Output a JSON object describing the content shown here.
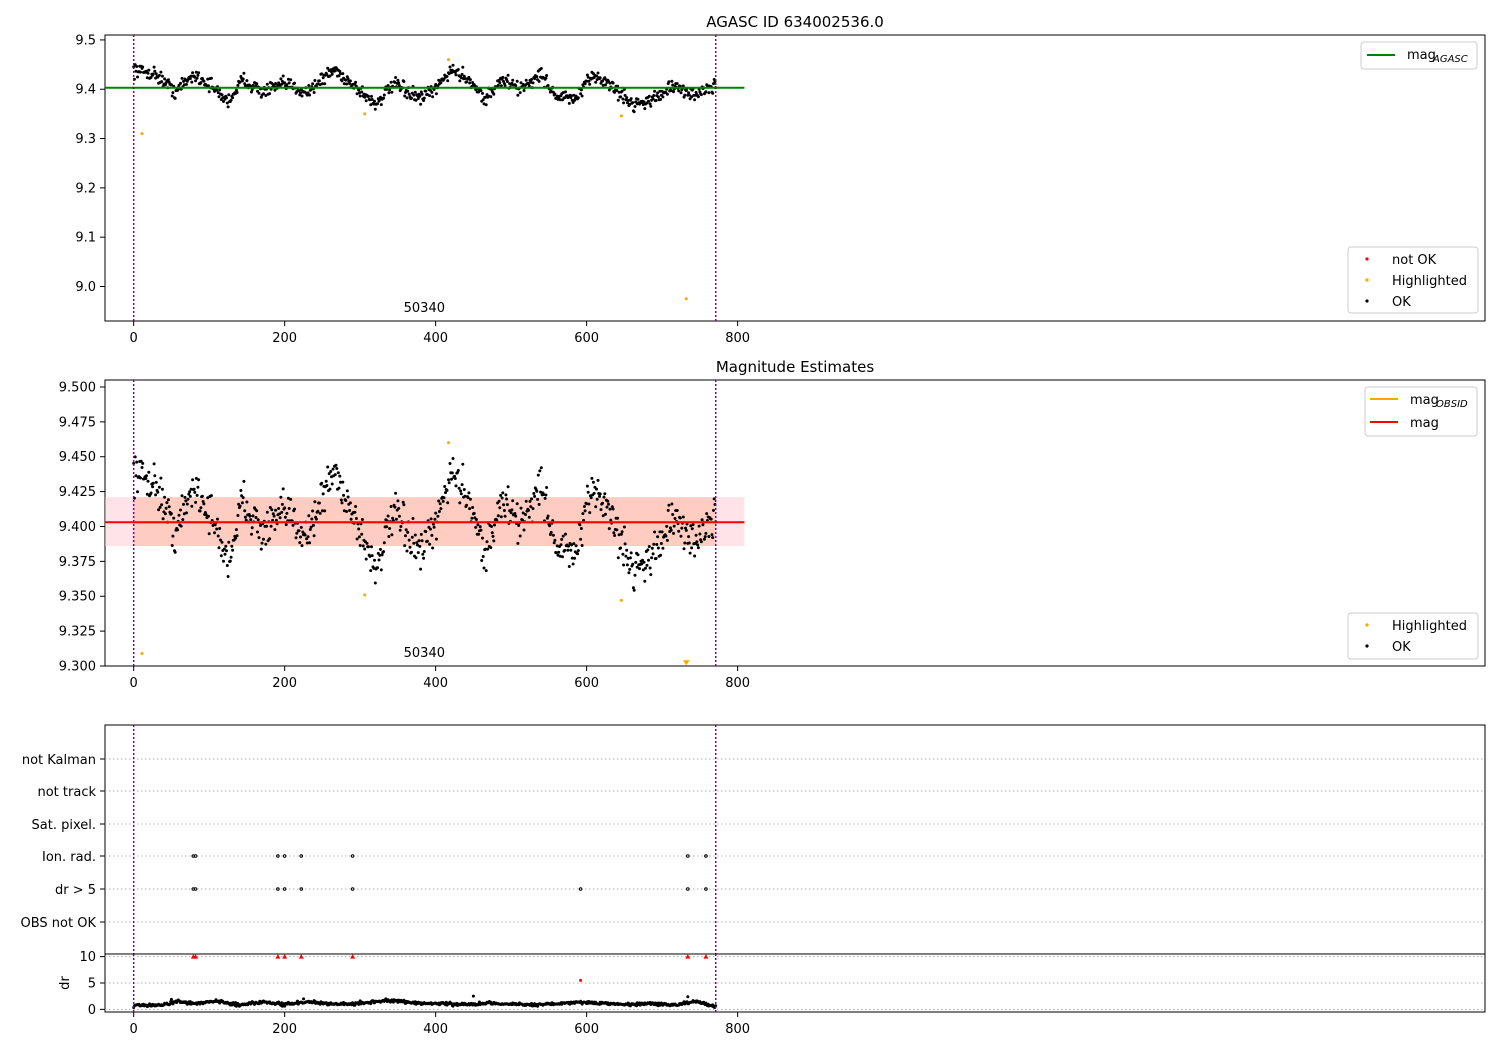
{
  "figure": {
    "panel1_title": "AGASC ID 634002536.0",
    "panel2_title": "Magnitude Estimates"
  },
  "colors": {
    "ok": "#000000",
    "highlighted": "#ffa500",
    "not_ok": "#ff0000",
    "agasc_line": "#008000",
    "mag_line": "#ff0000",
    "obsid_line": "#ffa500",
    "band_outer": "#ffc0cb",
    "band_inner": "#ffa07a",
    "obs_boundary": "#800080",
    "grid": "#b0b0b0"
  },
  "chart_data": [
    {
      "type": "scatter",
      "title": "AGASC ID 634002536.0",
      "xlim": [
        -38,
        1790
      ],
      "ylim": [
        8.93,
        9.51
      ],
      "xticks": [
        0,
        200,
        400,
        600,
        800
      ],
      "yticks": [
        9.0,
        9.1,
        9.2,
        9.3,
        9.4,
        9.5
      ],
      "ytick_labels": [
        "9.0",
        "9.1",
        "9.2",
        "9.3",
        "9.4",
        "9.5"
      ],
      "mag_agasc": 9.403,
      "obs_boundaries": [
        0,
        771
      ],
      "obs_label": {
        "text": "50340",
        "x": 385
      },
      "legend_lines": [
        {
          "name": "mag",
          "sub": "AGASC",
          "color": "#008000"
        }
      ],
      "legend_points": [
        {
          "name": "not OK",
          "color": "#ff0000"
        },
        {
          "name": "Highlighted",
          "color": "#ffa500"
        },
        {
          "name": "OK",
          "color": "#000000"
        }
      ],
      "highlighted": [
        [
          11,
          9.31
        ],
        [
          306,
          9.35
        ],
        [
          417,
          9.46
        ],
        [
          646,
          9.346
        ],
        [
          732,
          8.975
        ]
      ],
      "ok_trend": [
        [
          0,
          9.44
        ],
        [
          30,
          9.43
        ],
        [
          55,
          9.395
        ],
        [
          80,
          9.43
        ],
        [
          100,
          9.41
        ],
        [
          125,
          9.375
        ],
        [
          145,
          9.42
        ],
        [
          170,
          9.395
        ],
        [
          200,
          9.41
        ],
        [
          230,
          9.395
        ],
        [
          265,
          9.44
        ],
        [
          290,
          9.41
        ],
        [
          320,
          9.37
        ],
        [
          345,
          9.41
        ],
        [
          380,
          9.38
        ],
        [
          400,
          9.4
        ],
        [
          420,
          9.44
        ],
        [
          445,
          9.42
        ],
        [
          465,
          9.38
        ],
        [
          490,
          9.42
        ],
        [
          510,
          9.4
        ],
        [
          540,
          9.43
        ],
        [
          560,
          9.385
        ],
        [
          585,
          9.38
        ],
        [
          610,
          9.43
        ],
        [
          630,
          9.41
        ],
        [
          660,
          9.37
        ],
        [
          690,
          9.38
        ],
        [
          710,
          9.405
        ],
        [
          740,
          9.39
        ],
        [
          771,
          9.405
        ]
      ]
    },
    {
      "type": "scatter",
      "title": "Magnitude Estimates",
      "xlim": [
        -38,
        1790
      ],
      "ylim": [
        9.3,
        9.505
      ],
      "xticks": [
        0,
        200,
        400,
        600,
        800
      ],
      "yticks": [
        9.3,
        9.325,
        9.35,
        9.375,
        9.4,
        9.425,
        9.45,
        9.475,
        9.5
      ],
      "ytick_labels": [
        "9.300",
        "9.325",
        "9.350",
        "9.375",
        "9.400",
        "9.425",
        "9.450",
        "9.475",
        "9.500"
      ],
      "mag": 9.403,
      "mag_band": [
        9.386,
        9.421
      ],
      "mag_obsid": 9.403,
      "obs_boundaries": [
        0,
        771
      ],
      "obs_label": {
        "text": "50340",
        "x": 385
      },
      "legend_lines": [
        {
          "name": "mag",
          "sub": "OBSID",
          "color": "#ffa500"
        },
        {
          "name": "mag",
          "sub": "",
          "color": "#ff0000"
        }
      ],
      "legend_points": [
        {
          "name": "Highlighted",
          "color": "#ffa500"
        },
        {
          "name": "OK",
          "color": "#000000"
        }
      ],
      "highlighted": [
        [
          11,
          9.309
        ],
        [
          306,
          9.351
        ],
        [
          417,
          9.46
        ],
        [
          646,
          9.347
        ],
        [
          732,
          9.303
        ]
      ],
      "outlier_marker": [
        732,
        9.302
      ],
      "ok_trend": [
        [
          0,
          9.44
        ],
        [
          30,
          9.43
        ],
        [
          55,
          9.395
        ],
        [
          80,
          9.43
        ],
        [
          100,
          9.41
        ],
        [
          125,
          9.375
        ],
        [
          145,
          9.42
        ],
        [
          170,
          9.395
        ],
        [
          200,
          9.41
        ],
        [
          230,
          9.395
        ],
        [
          265,
          9.44
        ],
        [
          290,
          9.41
        ],
        [
          320,
          9.37
        ],
        [
          345,
          9.41
        ],
        [
          380,
          9.38
        ],
        [
          400,
          9.4
        ],
        [
          420,
          9.44
        ],
        [
          445,
          9.42
        ],
        [
          465,
          9.38
        ],
        [
          490,
          9.42
        ],
        [
          510,
          9.4
        ],
        [
          540,
          9.43
        ],
        [
          560,
          9.385
        ],
        [
          585,
          9.38
        ],
        [
          610,
          9.43
        ],
        [
          630,
          9.41
        ],
        [
          660,
          9.37
        ],
        [
          690,
          9.38
        ],
        [
          710,
          9.405
        ],
        [
          740,
          9.39
        ],
        [
          771,
          9.405
        ]
      ]
    },
    {
      "type": "scatter",
      "title": "",
      "xlim": [
        -38,
        1790
      ],
      "categories": [
        "not Kalman",
        "not track",
        "Sat. pixel.",
        "Ion. rad.",
        "dr > 5",
        "OBS not OK"
      ],
      "obs_boundaries": [
        0,
        771
      ],
      "flag_points": {
        "Ion. rad.": [
          79,
          82,
          191,
          200,
          222,
          290,
          734,
          758
        ],
        "dr > 5": [
          79,
          82,
          191,
          200,
          222,
          290,
          592,
          734,
          758
        ]
      }
    },
    {
      "type": "scatter",
      "title": "",
      "xlim": [
        -38,
        1790
      ],
      "ylim": [
        -0.5,
        10.5
      ],
      "ylabel": "dr",
      "xticks": [
        0,
        200,
        400,
        600,
        800
      ],
      "yticks": [
        0,
        5,
        10
      ],
      "ytick_labels": [
        "0",
        "5",
        "10"
      ],
      "obs_boundaries": [
        0,
        771
      ],
      "clipped_markers_at_10": [
        79,
        82,
        191,
        200,
        222,
        290,
        734,
        758
      ],
      "red_points": [
        [
          592,
          5.5
        ]
      ],
      "spikes": [
        [
          225,
          2.0
        ],
        [
          450,
          2.5
        ],
        [
          734,
          2.4
        ],
        [
          50,
          1.9
        ],
        [
          300,
          1.6
        ]
      ],
      "trend": [
        [
          0,
          0.7
        ],
        [
          40,
          0.9
        ],
        [
          60,
          1.6
        ],
        [
          80,
          1.0
        ],
        [
          110,
          1.6
        ],
        [
          140,
          0.8
        ],
        [
          170,
          1.5
        ],
        [
          200,
          0.9
        ],
        [
          230,
          1.5
        ],
        [
          260,
          1.0
        ],
        [
          300,
          1.1
        ],
        [
          340,
          1.7
        ],
        [
          370,
          1.2
        ],
        [
          400,
          1.1
        ],
        [
          440,
          0.9
        ],
        [
          470,
          1.1
        ],
        [
          500,
          1.0
        ],
        [
          530,
          0.8
        ],
        [
          560,
          1.1
        ],
        [
          590,
          1.4
        ],
        [
          620,
          1.2
        ],
        [
          650,
          0.9
        ],
        [
          690,
          1.1
        ],
        [
          720,
          0.8
        ],
        [
          740,
          1.5
        ],
        [
          771,
          0.6
        ]
      ]
    }
  ]
}
